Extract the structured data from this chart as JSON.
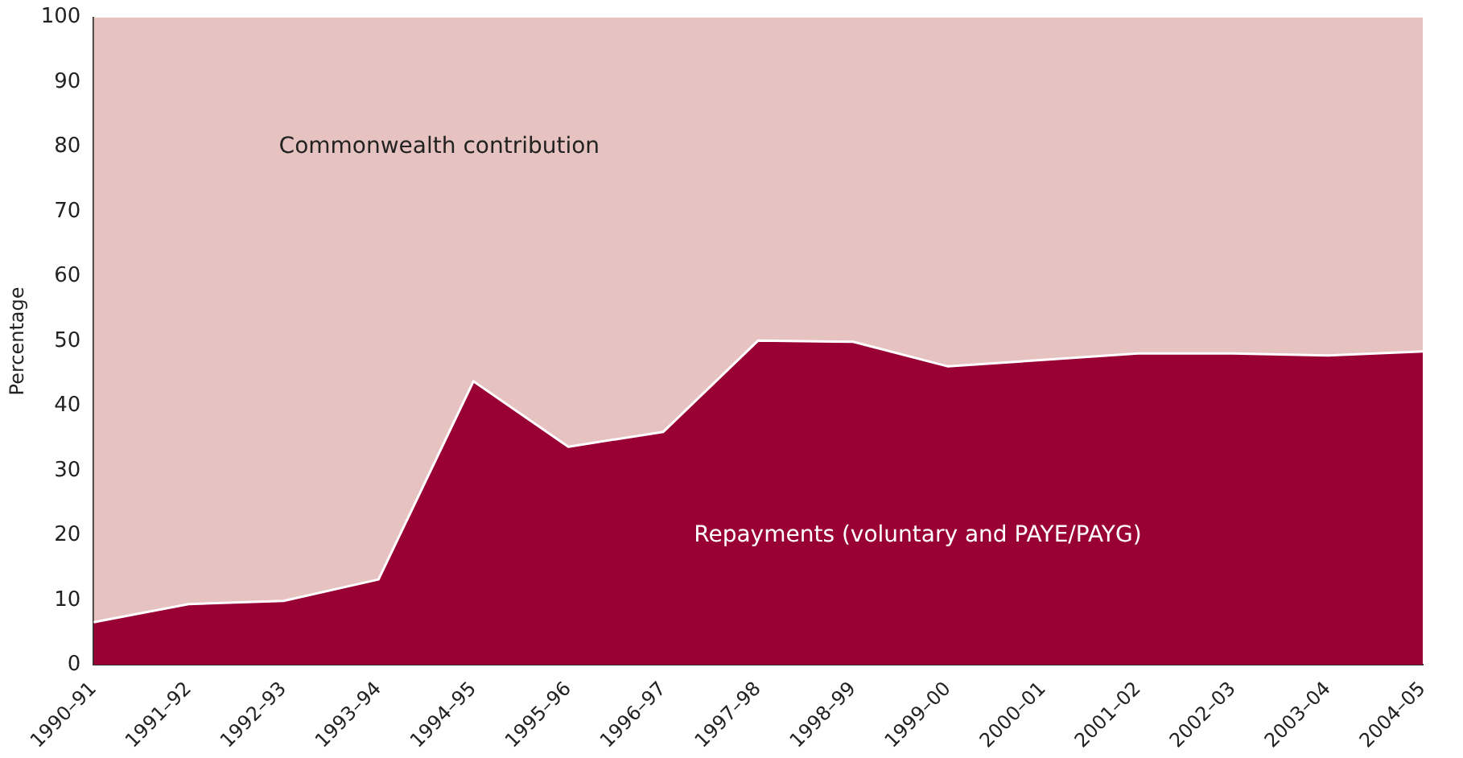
{
  "chart_data": {
    "type": "area",
    "stacked": true,
    "ylabel": "Percentage",
    "categories": [
      "1990–91",
      "1991–92",
      "1992–93",
      "1993–94",
      "1994–95",
      "1995–96",
      "1996–97",
      "1997–98",
      "1998–99",
      "1999–00",
      "2000–01",
      "2001–02",
      "2002–03",
      "2003–04",
      "2004–05"
    ],
    "series": [
      {
        "name": "Repayments (voluntary and PAYE/PAYG)",
        "color": "#990033",
        "values": [
          6.6,
          9.4,
          9.9,
          13.2,
          43.8,
          33.7,
          36.0,
          50.1,
          49.9,
          46.1,
          47.1,
          48.1,
          48.1,
          47.8,
          48.4
        ]
      },
      {
        "name": "Commonwealth contribution",
        "color": "#e6c3c0",
        "values": [
          93.4,
          90.6,
          90.1,
          86.8,
          56.2,
          66.3,
          64.0,
          49.9,
          50.1,
          53.9,
          52.9,
          51.9,
          51.9,
          52.2,
          51.6
        ]
      }
    ],
    "ylim": [
      0,
      100
    ],
    "yticks": [
      0,
      10,
      20,
      30,
      40,
      50,
      60,
      70,
      80,
      90,
      100
    ],
    "grid": false,
    "legend": false
  }
}
